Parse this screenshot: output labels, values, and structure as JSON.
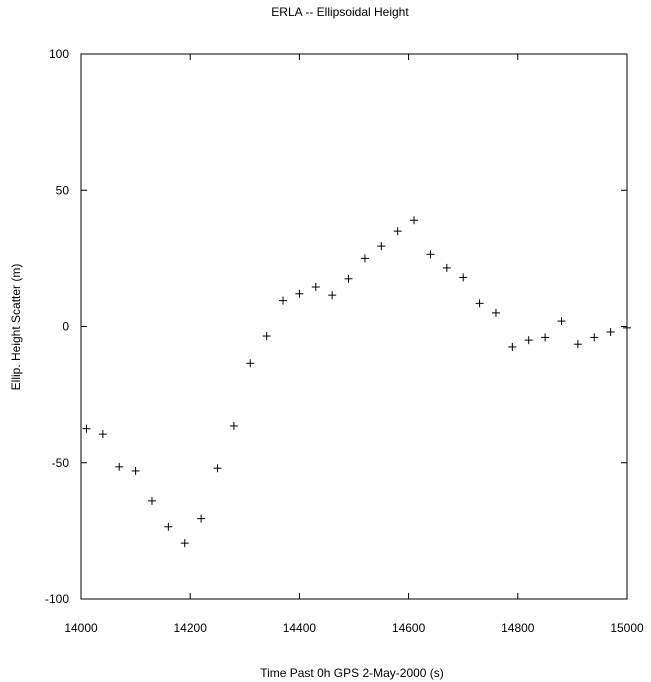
{
  "chart_data": {
    "type": "scatter",
    "title": "ERLA -- Ellipsoidal Height",
    "xlabel": "Time Past 0h GPS 2-May-2000  (s)",
    "ylabel": "Ellip. Height Scatter  (m)",
    "xlim": [
      14000,
      15000
    ],
    "ylim": [
      -100,
      100
    ],
    "xticks": [
      14000,
      14200,
      14400,
      14600,
      14800,
      15000
    ],
    "yticks": [
      100,
      50,
      0,
      -50,
      -100
    ],
    "grid": false,
    "marker": "+",
    "series": [
      {
        "points": [
          [
            14010,
            -37.5
          ],
          [
            14040,
            -39.5
          ],
          [
            14070,
            -51.5
          ],
          [
            14100,
            -53
          ],
          [
            14130,
            -64
          ],
          [
            14160,
            -73.5
          ],
          [
            14190,
            -79.5
          ],
          [
            14220,
            -70.5
          ],
          [
            14250,
            -52
          ],
          [
            14280,
            -36.5
          ],
          [
            14310,
            -13.5
          ],
          [
            14340,
            -3.5
          ],
          [
            14370,
            9.5
          ],
          [
            14400,
            12
          ],
          [
            14430,
            14.5
          ],
          [
            14460,
            11.5
          ],
          [
            14490,
            17.5
          ],
          [
            14520,
            25
          ],
          [
            14550,
            29.5
          ],
          [
            14580,
            35
          ],
          [
            14610,
            39
          ],
          [
            14640,
            26.5
          ],
          [
            14670,
            21.5
          ],
          [
            14700,
            18
          ],
          [
            14730,
            8.5
          ],
          [
            14760,
            5
          ],
          [
            14790,
            -7.5
          ],
          [
            14820,
            -5
          ],
          [
            14850,
            -4
          ],
          [
            14880,
            2
          ],
          [
            14910,
            -6.5
          ],
          [
            14940,
            -4
          ],
          [
            14970,
            -2
          ],
          [
            15000,
            -0.5
          ]
        ]
      }
    ]
  }
}
